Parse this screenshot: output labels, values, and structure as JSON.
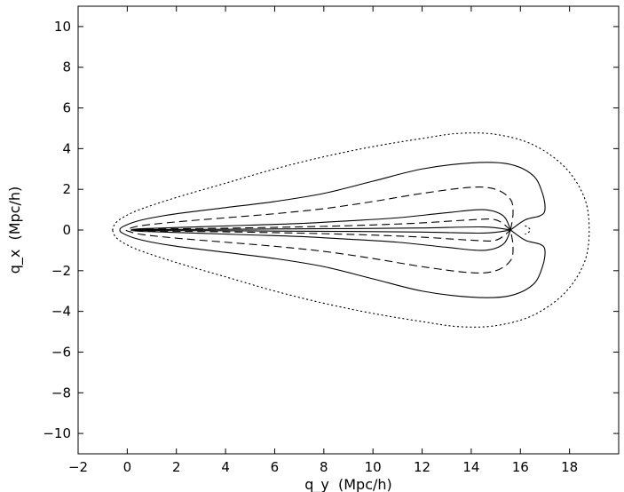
{
  "chart_data": {
    "type": "line",
    "title": "",
    "xlabel": "q_y  (Mpc/h)",
    "ylabel": "q_x  (Mpc/h)",
    "xlim": [
      -2,
      20
    ],
    "ylim": [
      -11,
      11
    ],
    "xticks": [
      -2,
      0,
      2,
      4,
      6,
      8,
      10,
      12,
      14,
      16,
      18
    ],
    "yticks": [
      -10,
      -8,
      -6,
      -4,
      -2,
      0,
      2,
      4,
      6,
      8,
      10
    ],
    "grid": false,
    "legend": "none",
    "series": [
      {
        "style": "dotted",
        "x": [
          16.2,
          16.3,
          16.4,
          16.3,
          16.2
        ],
        "y": [
          0.2,
          0.15,
          0,
          -0.15,
          -0.2
        ]
      },
      {
        "style": "dotted",
        "x": [
          -0.6,
          -0.5,
          -0.2,
          0.5,
          2,
          4,
          6,
          8,
          10,
          12,
          13.5,
          15,
          16.5,
          17.8,
          18.6,
          18.8,
          18.6,
          17.8,
          16.5,
          15,
          13.5,
          12,
          10,
          8,
          6,
          4,
          2,
          0.5,
          -0.2,
          -0.5,
          -0.6
        ],
        "y": [
          0,
          0.3,
          0.6,
          1.0,
          1.6,
          2.3,
          3.0,
          3.6,
          4.1,
          4.5,
          4.75,
          4.7,
          4.2,
          3.1,
          1.6,
          0,
          -1.6,
          -3.1,
          -4.2,
          -4.7,
          -4.75,
          -4.5,
          -4.1,
          -3.6,
          -3.0,
          -2.3,
          -1.6,
          -1.0,
          -0.6,
          -0.3,
          0
        ]
      },
      {
        "style": "solid",
        "x": [
          15.6,
          16.2,
          16.8,
          17.0,
          16.9,
          16.5,
          15.5,
          14,
          12,
          10,
          8,
          6,
          4,
          2,
          1,
          0.3,
          -0.2,
          -0.3,
          -0.2,
          0.3,
          1,
          2,
          4,
          6,
          8,
          10,
          12,
          14,
          15.5,
          16.5,
          16.9,
          17.0,
          16.8,
          16.2,
          15.6
        ],
        "y": [
          0,
          0.5,
          0.7,
          1.0,
          1.8,
          2.7,
          3.25,
          3.3,
          3.0,
          2.4,
          1.8,
          1.4,
          1.1,
          0.8,
          0.6,
          0.4,
          0.15,
          0,
          -0.15,
          -0.4,
          -0.6,
          -0.8,
          -1.1,
          -1.4,
          -1.8,
          -2.4,
          -3.0,
          -3.3,
          -3.25,
          -2.7,
          -1.8,
          -1.0,
          -0.7,
          -0.5,
          0
        ]
      },
      {
        "style": "dashed",
        "x": [
          15.6,
          15.7,
          15.6,
          15.0,
          14.0,
          12,
          10,
          8,
          6,
          4,
          2,
          0.6,
          0.1,
          -0.05,
          0.1,
          0.6,
          2,
          4,
          6,
          8,
          10,
          12,
          14.0,
          15.0,
          15.6,
          15.7,
          15.6
        ],
        "y": [
          0,
          0.8,
          1.5,
          2.0,
          2.1,
          1.8,
          1.4,
          1.05,
          0.8,
          0.6,
          0.4,
          0.22,
          0.08,
          0,
          -0.08,
          -0.22,
          -0.4,
          -0.6,
          -0.8,
          -1.05,
          -1.4,
          -1.8,
          -2.1,
          -2.0,
          -1.5,
          -0.8,
          0
        ]
      },
      {
        "style": "solid",
        "x": [
          15.6,
          15.3,
          14.5,
          13,
          11,
          9,
          7,
          5,
          3,
          1.5,
          0.5,
          0.15,
          0.5,
          1.5,
          3,
          5,
          7,
          9,
          11,
          13,
          14.5,
          15.3,
          15.6
        ],
        "y": [
          0,
          0.7,
          1.0,
          0.85,
          0.6,
          0.45,
          0.32,
          0.24,
          0.16,
          0.1,
          0.06,
          0,
          -0.06,
          -0.1,
          -0.16,
          -0.24,
          -0.32,
          -0.45,
          -0.6,
          -0.85,
          -1.0,
          -0.7,
          0
        ]
      },
      {
        "style": "dashed",
        "x": [
          15.6,
          15.0,
          14.0,
          12,
          10,
          8,
          6,
          4,
          2,
          0.6,
          0.2,
          0.6,
          2,
          4,
          6,
          8,
          10,
          12,
          14.0,
          15.0,
          15.6
        ],
        "y": [
          0,
          0.5,
          0.5,
          0.35,
          0.25,
          0.18,
          0.13,
          0.09,
          0.06,
          0.04,
          0,
          -0.04,
          -0.06,
          -0.09,
          -0.13,
          -0.18,
          -0.25,
          -0.35,
          -0.5,
          -0.5,
          0
        ]
      },
      {
        "style": "solid",
        "x": [
          15.6,
          14.5,
          12,
          9,
          6,
          3,
          0.8,
          0.3,
          0.8,
          3,
          6,
          9,
          12,
          14.5,
          15.6
        ],
        "y": [
          0,
          0.15,
          0.1,
          0.07,
          0.05,
          0.03,
          0.02,
          0,
          -0.02,
          -0.03,
          -0.05,
          -0.07,
          -0.1,
          -0.15,
          0
        ]
      }
    ]
  }
}
